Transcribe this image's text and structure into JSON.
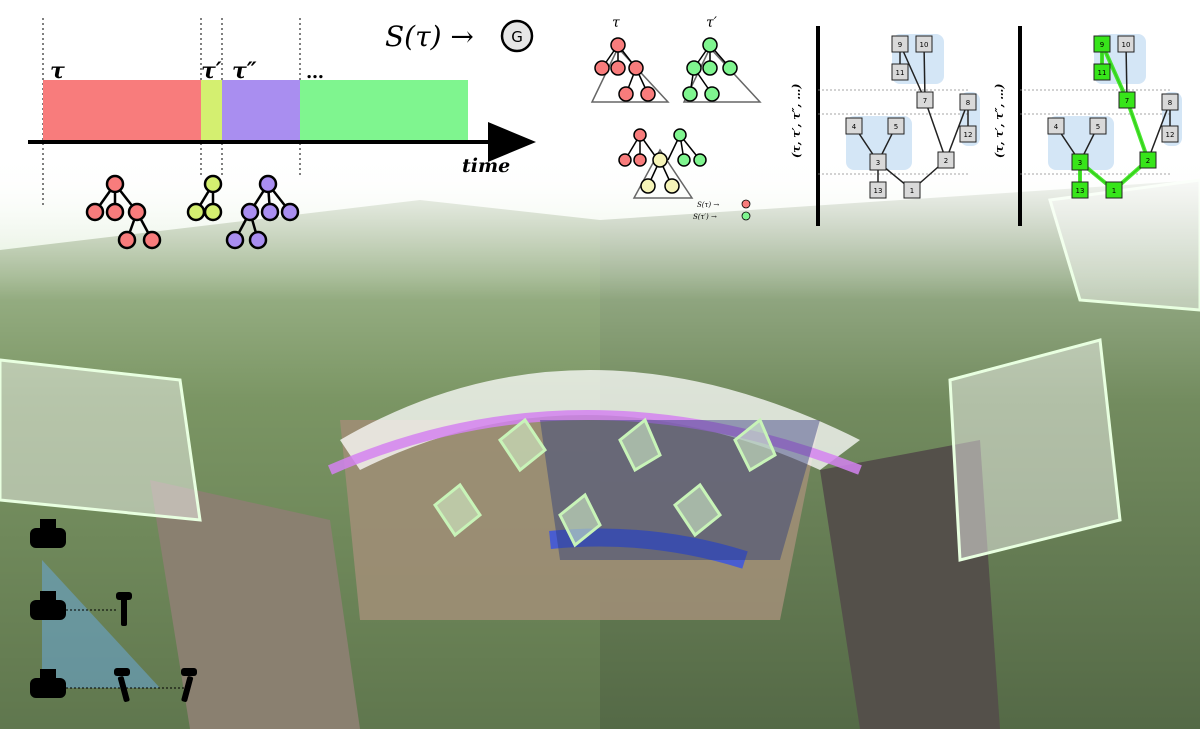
{
  "timeline": {
    "segments": [
      {
        "label": "τ",
        "color": "#f87c7c"
      },
      {
        "label": "τ′",
        "color": "#d4ef70"
      },
      {
        "label": "τ″",
        "color": "#a98ef0"
      },
      {
        "label": "…",
        "color": "#7ff58f"
      }
    ],
    "axis_label": "time"
  },
  "scoring": {
    "formula_prefix": "S(τ) →",
    "goal_letter": "G",
    "tau_label": "τ",
    "tau_prime_label": "τ′",
    "legend_red": "S(τ) →",
    "legend_green": "S(τ′) →"
  },
  "graph": {
    "axis_label": "(τ, τ′, τ″, …)",
    "node_labels": [
      "9",
      "10",
      "11",
      "7",
      "8",
      "12",
      "4",
      "5",
      "3",
      "2",
      "13",
      "1"
    ]
  },
  "colors": {
    "red": "#f87c7c",
    "yellow": "#d4ef70",
    "purple": "#a98ef0",
    "green": "#7ff58f",
    "path_green": "#37e51a",
    "highlight_blue": "#cfe3f5"
  }
}
